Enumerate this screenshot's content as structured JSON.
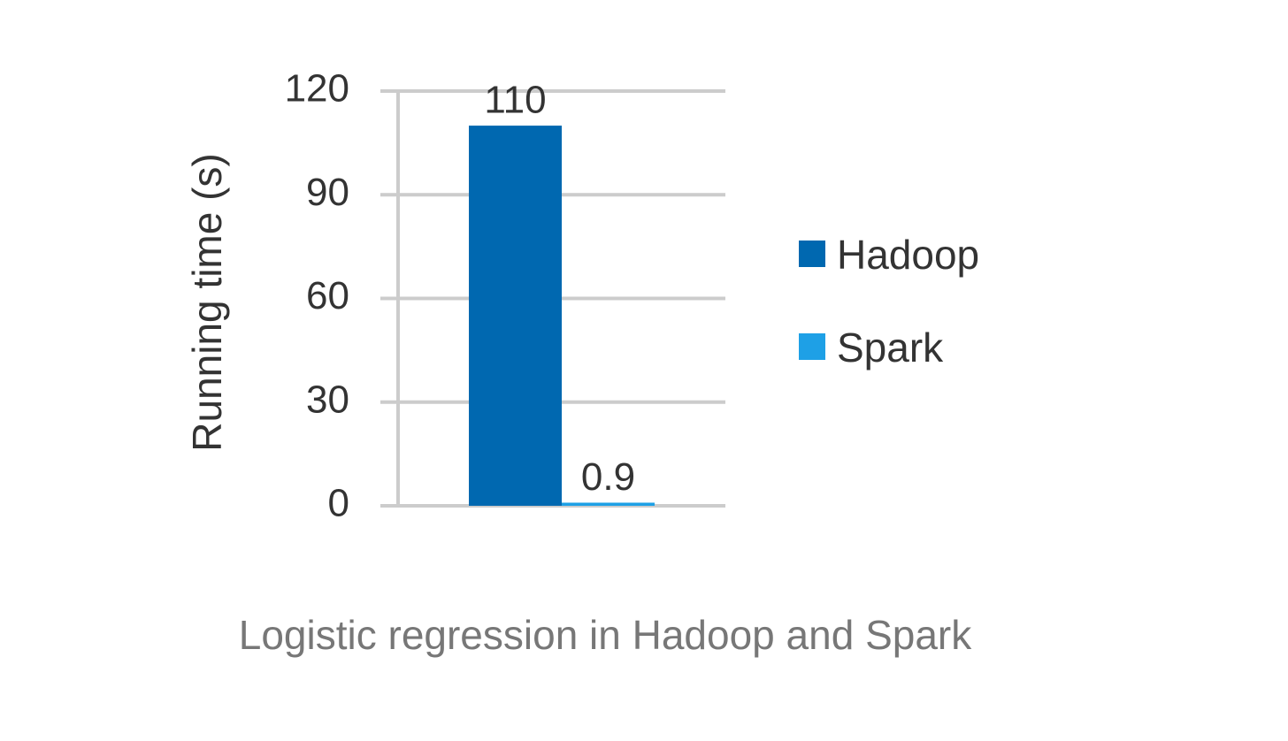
{
  "chart_data": {
    "type": "bar",
    "caption": "Logistic regression in Hadoop and Spark",
    "y_label": "Running time (s)",
    "categories": [
      null
    ],
    "series": [
      {
        "name": "Hadoop",
        "color": "#0068b0",
        "values": [
          110
        ]
      },
      {
        "name": "Spark",
        "color": "#1ea0e6",
        "values": [
          0.9
        ]
      }
    ],
    "ylim": [
      0,
      120
    ],
    "yticks": [
      0,
      30,
      60,
      90,
      120
    ],
    "grid": true,
    "legend": "right"
  }
}
